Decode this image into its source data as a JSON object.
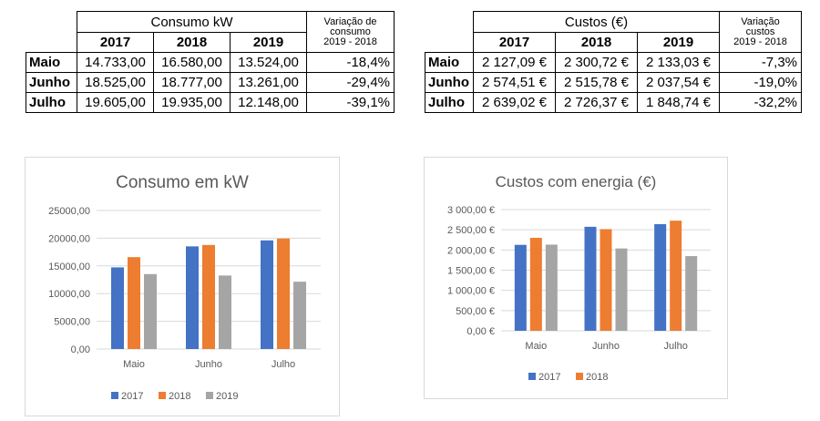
{
  "table_consumo": {
    "group_header": "Consumo kW",
    "variation_header": [
      "Variação de",
      "consumo",
      "2019 - 2018"
    ],
    "years": [
      "2017",
      "2018",
      "2019"
    ],
    "rows": [
      {
        "label": "Maio",
        "values": [
          "14.733,00",
          "16.580,00",
          "13.524,00"
        ],
        "variation": "-18,4%"
      },
      {
        "label": "Junho",
        "values": [
          "18.525,00",
          "18.777,00",
          "13.261,00"
        ],
        "variation": "-29,4%"
      },
      {
        "label": "Julho",
        "values": [
          "19.605,00",
          "19.935,00",
          "12.148,00"
        ],
        "variation": "-39,1%"
      }
    ]
  },
  "table_custos": {
    "group_header": "Custos (€)",
    "variation_header": [
      "Variação",
      "custos",
      "2019 - 2018"
    ],
    "years": [
      "2017",
      "2018",
      "2019"
    ],
    "rows": [
      {
        "label": "Maio",
        "values": [
          "2 127,09 €",
          "2 300,72 €",
          "2 133,03 €"
        ],
        "variation": "-7,3%"
      },
      {
        "label": "Junho",
        "values": [
          "2 574,51 €",
          "2 515,78 €",
          "2 037,54 €"
        ],
        "variation": "-19,0%"
      },
      {
        "label": "Julho",
        "values": [
          "2 639,02 €",
          "2 726,37 €",
          "1 848,74 €"
        ],
        "variation": "-32,2%"
      }
    ]
  },
  "chart_data": [
    {
      "type": "bar",
      "title": "Consumo em kW",
      "categories": [
        "Maio",
        "Junho",
        "Julho"
      ],
      "series": [
        {
          "name": "2017",
          "values": [
            14733,
            18525,
            19605
          ]
        },
        {
          "name": "2018",
          "values": [
            16580,
            18777,
            19935
          ]
        },
        {
          "name": "2019",
          "values": [
            13524,
            13261,
            12148
          ]
        }
      ],
      "yticks": [
        "0,00",
        "5000,00",
        "10000,00",
        "15000,00",
        "20000,00",
        "25000,00"
      ],
      "ylim": [
        0,
        25000
      ],
      "grid": true,
      "legend": "bottom"
    },
    {
      "type": "bar",
      "title": "Custos com energia (€)",
      "categories": [
        "Maio",
        "Junho",
        "Julho"
      ],
      "series": [
        {
          "name": "2017",
          "values": [
            2127.09,
            2574.51,
            2639.02
          ]
        },
        {
          "name": "2018",
          "values": [
            2300.72,
            2515.78,
            2726.37
          ]
        },
        {
          "name": "",
          "values": [
            2133.03,
            2037.54,
            1848.74
          ]
        }
      ],
      "legend_entries": [
        "2017",
        "2018"
      ],
      "yticks": [
        "0,00 €",
        "500,00 €",
        "1 000,00 €",
        "1 500,00 €",
        "2 000,00 €",
        "2 500,00 €",
        "3 000,00 €"
      ],
      "ylim": [
        0,
        3000
      ],
      "grid": true,
      "legend": "bottom"
    }
  ],
  "colors": {
    "s2017": "#4472C4",
    "s2018": "#ED7D31",
    "s2019": "#A5A5A5",
    "grid": "#d9d9d9",
    "title": "#595959",
    "axis": "#595959"
  }
}
